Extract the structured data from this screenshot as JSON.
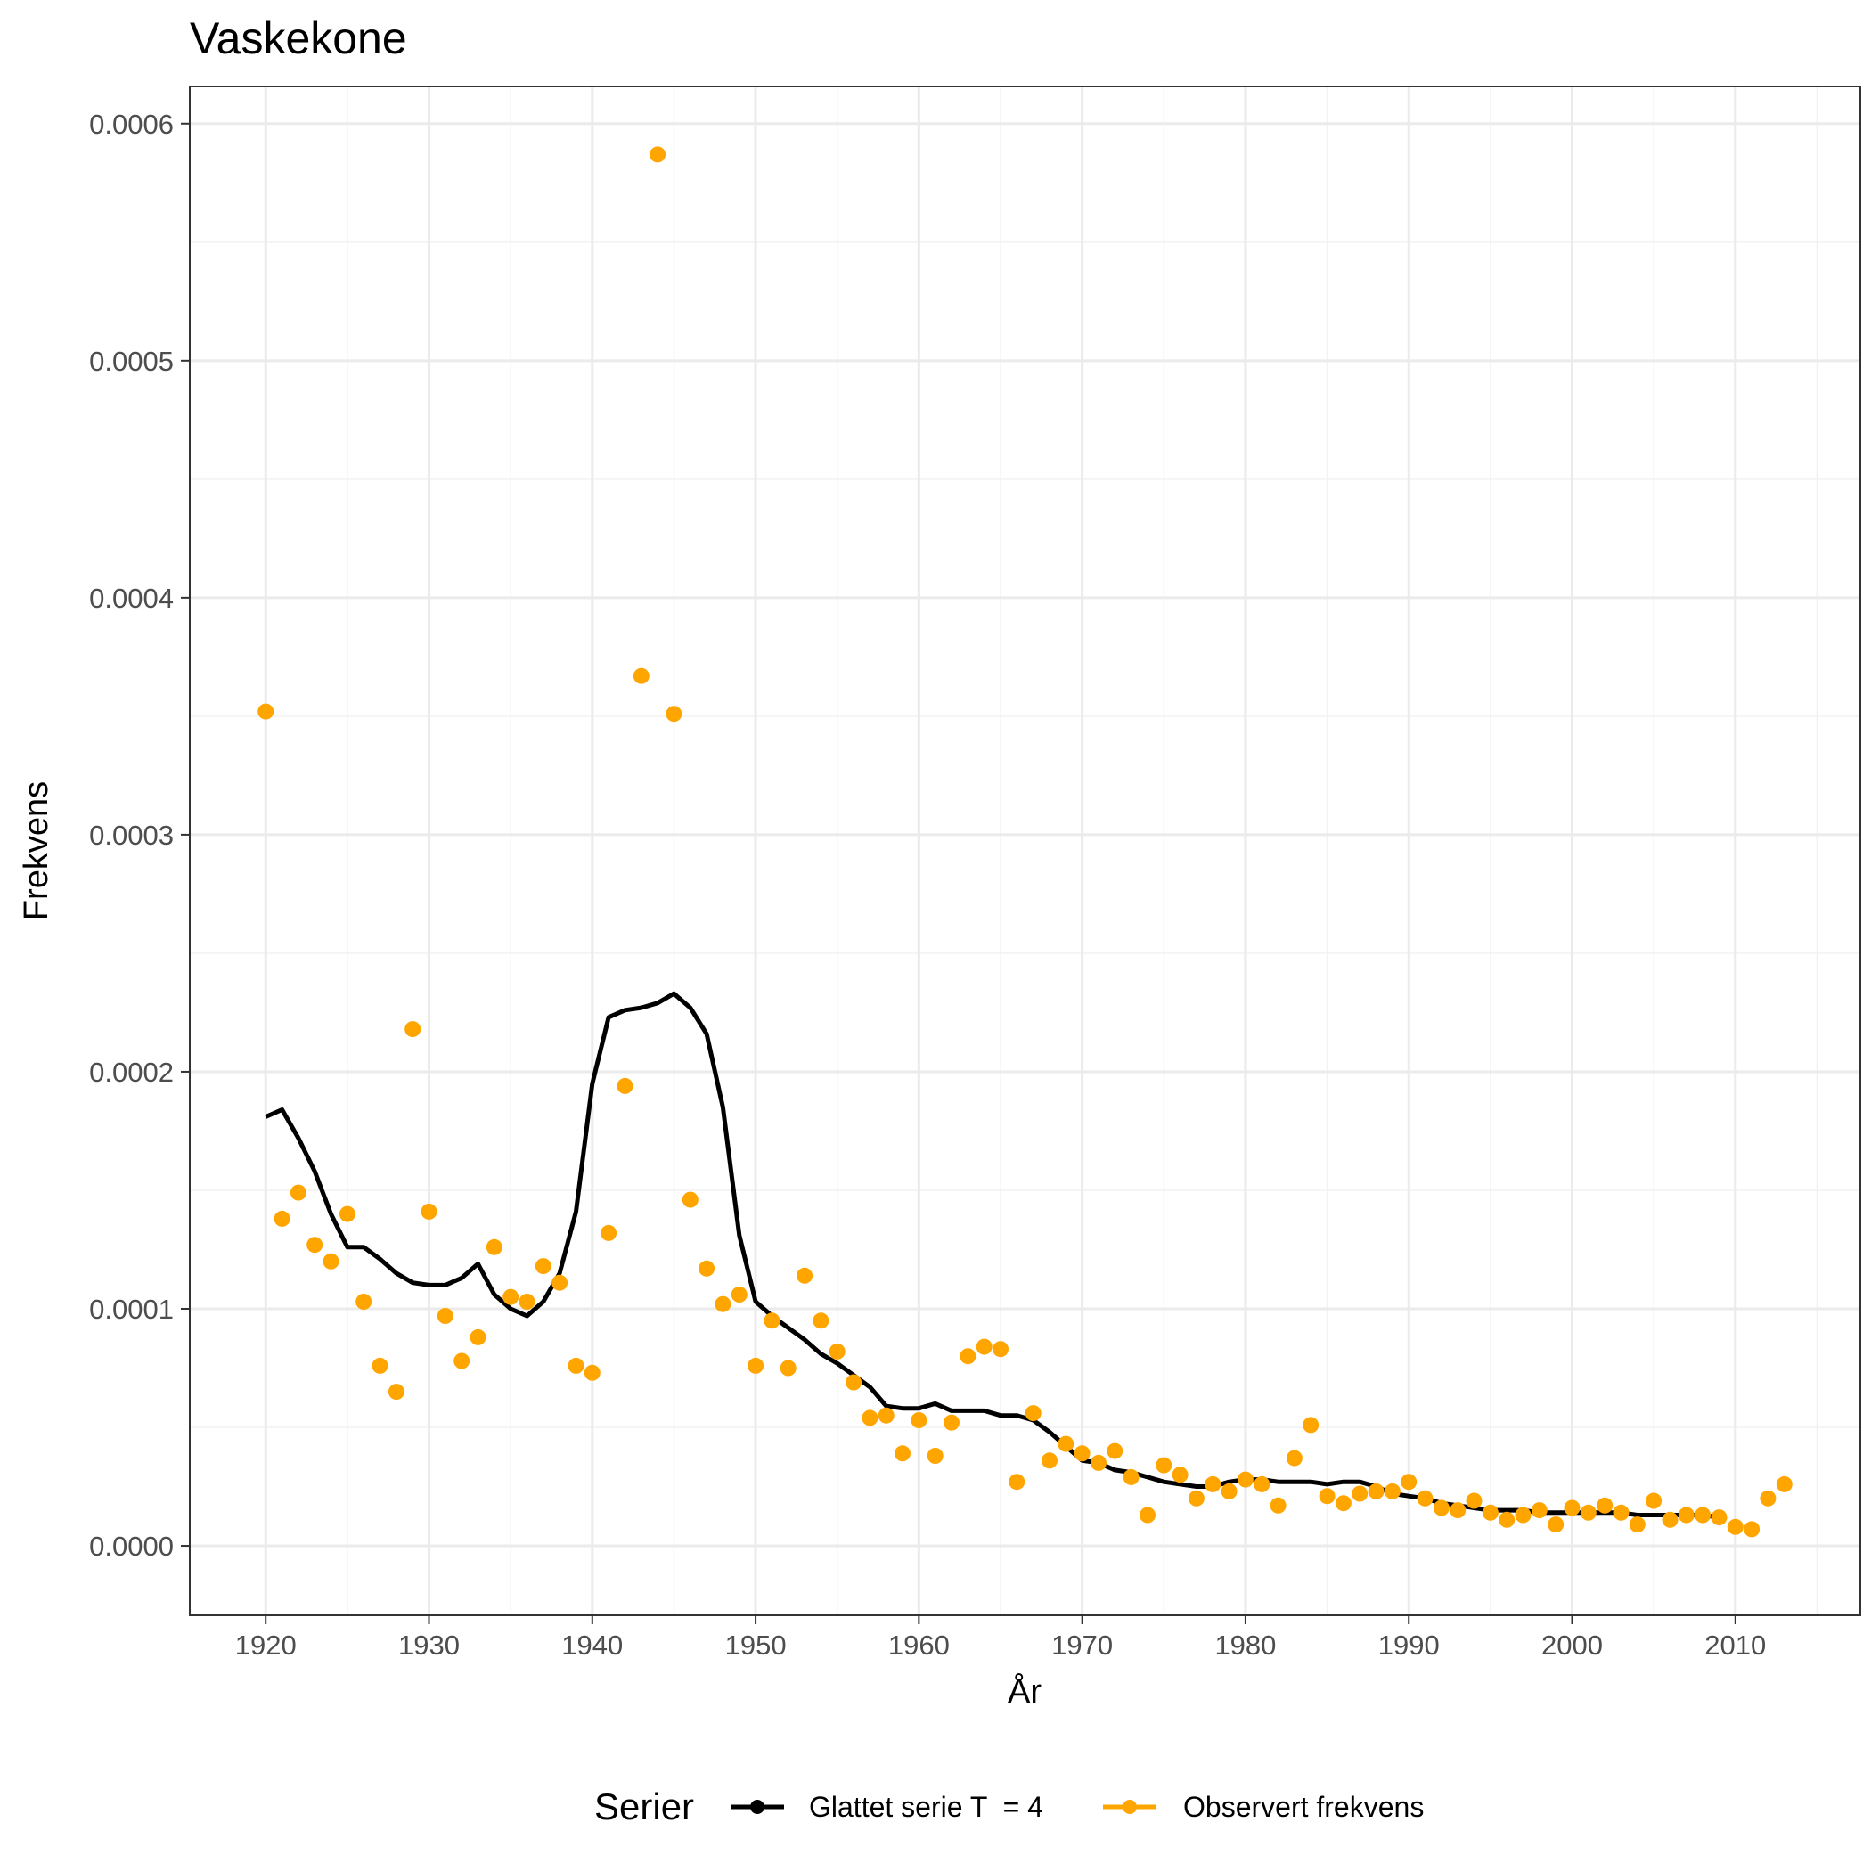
{
  "chart_data": {
    "type": "line",
    "title": "Vaskekone",
    "xlabel": "År",
    "ylabel": "Frekvens",
    "xlim": [
      1915.35,
      2017.65
    ],
    "ylim": [
      -2.93e-05,
      0.0006157
    ],
    "x_ticks": [
      1920,
      1930,
      1940,
      1950,
      1960,
      1970,
      1980,
      1990,
      2000,
      2010
    ],
    "x_tick_labels": [
      "1920",
      "1930",
      "1940",
      "1950",
      "1960",
      "1970",
      "1980",
      "1990",
      "2000",
      "2010"
    ],
    "y_ticks": [
      0,
      0.0001,
      0.0002,
      0.0003,
      0.0004,
      0.0005,
      0.0006
    ],
    "y_tick_labels": [
      "0.0000",
      "0.0001",
      "0.0002",
      "0.0003",
      "0.0004",
      "0.0005",
      "0.0006"
    ],
    "grid": true,
    "legend": {
      "title": "Serier",
      "position": "bottom"
    },
    "series": [
      {
        "name": "Glattet serie T  = 4",
        "kind": "line",
        "color": "#000000",
        "x": [
          1920,
          1921,
          1922,
          1923,
          1924,
          1925,
          1926,
          1927,
          1928,
          1929,
          1930,
          1931,
          1932,
          1933,
          1934,
          1935,
          1936,
          1937,
          1938,
          1939,
          1940,
          1941,
          1942,
          1943,
          1944,
          1945,
          1946,
          1947,
          1948,
          1949,
          1950,
          1951,
          1952,
          1953,
          1954,
          1955,
          1956,
          1957,
          1958,
          1959,
          1960,
          1961,
          1962,
          1963,
          1964,
          1965,
          1966,
          1967,
          1968,
          1969,
          1970,
          1971,
          1972,
          1973,
          1974,
          1975,
          1976,
          1977,
          1978,
          1979,
          1980,
          1981,
          1982,
          1983,
          1984,
          1985,
          1986,
          1987,
          1988,
          1989,
          1990,
          1991,
          1992,
          1993,
          1994,
          1995,
          1996,
          1997,
          1998,
          1999,
          2000,
          2001,
          2002,
          2003,
          2004,
          2005,
          2006,
          2007,
          2008,
          2009
        ],
        "values": [
          0.000181,
          0.000184,
          0.000172,
          0.000158,
          0.00014,
          0.000126,
          0.000126,
          0.000121,
          0.000115,
          0.000111,
          0.00011,
          0.00011,
          0.000113,
          0.000119,
          0.000106,
          0.0001,
          9.7e-05,
          0.000103,
          0.000115,
          0.000141,
          0.000195,
          0.000223,
          0.000226,
          0.000227,
          0.000229,
          0.000233,
          0.000227,
          0.000216,
          0.000185,
          0.000131,
          0.000103,
          9.7e-05,
          9.2e-05,
          8.7e-05,
          8.1e-05,
          7.7e-05,
          7.2e-05,
          6.7e-05,
          5.9e-05,
          5.8e-05,
          5.8e-05,
          6e-05,
          5.7e-05,
          5.7e-05,
          5.7e-05,
          5.5e-05,
          5.5e-05,
          5.3e-05,
          4.8e-05,
          4.2e-05,
          3.6e-05,
          3.5e-05,
          3.2e-05,
          3.1e-05,
          2.9e-05,
          2.7e-05,
          2.6e-05,
          2.5e-05,
          2.5e-05,
          2.7e-05,
          2.8e-05,
          2.8e-05,
          2.7e-05,
          2.7e-05,
          2.7e-05,
          2.6e-05,
          2.7e-05,
          2.7e-05,
          2.5e-05,
          2.2e-05,
          2.1e-05,
          2e-05,
          1.8e-05,
          1.7e-05,
          1.6e-05,
          1.5e-05,
          1.5e-05,
          1.5e-05,
          1.4e-05,
          1.4e-05,
          1.4e-05,
          1.4e-05,
          1.4e-05,
          1.4e-05,
          1.3e-05,
          1.3e-05,
          1.3e-05,
          1.3e-05,
          1.3e-05,
          1.2e-05
        ]
      },
      {
        "name": "Observert frekvens",
        "kind": "points",
        "color": "#FFA500",
        "x": [
          1920,
          1921,
          1922,
          1923,
          1924,
          1925,
          1926,
          1927,
          1928,
          1929,
          1930,
          1931,
          1932,
          1933,
          1934,
          1935,
          1936,
          1937,
          1938,
          1939,
          1940,
          1941,
          1942,
          1943,
          1944,
          1945,
          1946,
          1947,
          1948,
          1949,
          1950,
          1951,
          1952,
          1953,
          1954,
          1955,
          1956,
          1957,
          1958,
          1959,
          1960,
          1961,
          1962,
          1963,
          1964,
          1965,
          1966,
          1967,
          1968,
          1969,
          1970,
          1971,
          1972,
          1973,
          1974,
          1975,
          1976,
          1977,
          1978,
          1979,
          1980,
          1981,
          1982,
          1983,
          1984,
          1985,
          1986,
          1987,
          1988,
          1989,
          1990,
          1991,
          1992,
          1993,
          1994,
          1995,
          1996,
          1997,
          1998,
          1999,
          2000,
          2001,
          2002,
          2003,
          2004,
          2005,
          2006,
          2007,
          2008,
          2009,
          2010,
          2011,
          2012,
          2013
        ],
        "values": [
          0.000352,
          0.000138,
          0.000149,
          0.000127,
          0.00012,
          0.00014,
          0.000103,
          7.6e-05,
          6.5e-05,
          0.000218,
          0.000141,
          9.7e-05,
          7.8e-05,
          8.8e-05,
          0.000126,
          0.000105,
          0.000103,
          0.000118,
          0.000111,
          7.6e-05,
          7.3e-05,
          0.000132,
          0.000194,
          0.000367,
          0.000587,
          0.000351,
          0.000146,
          0.000117,
          0.000102,
          0.000106,
          7.6e-05,
          9.5e-05,
          7.5e-05,
          0.000114,
          9.5e-05,
          8.2e-05,
          6.9e-05,
          5.4e-05,
          5.5e-05,
          3.9e-05,
          5.3e-05,
          3.8e-05,
          5.2e-05,
          8e-05,
          8.4e-05,
          8.3e-05,
          2.7e-05,
          5.6e-05,
          3.6e-05,
          4.3e-05,
          3.9e-05,
          3.5e-05,
          4e-05,
          2.9e-05,
          1.3e-05,
          3.4e-05,
          3e-05,
          2e-05,
          2.6e-05,
          2.3e-05,
          2.8e-05,
          2.6e-05,
          1.7e-05,
          3.7e-05,
          5.1e-05,
          2.1e-05,
          1.8e-05,
          2.2e-05,
          2.3e-05,
          2.3e-05,
          2.7e-05,
          2e-05,
          1.6e-05,
          1.5e-05,
          1.9e-05,
          1.4e-05,
          1.1e-05,
          1.3e-05,
          1.5e-05,
          9e-06,
          1.6e-05,
          1.4e-05,
          1.7e-05,
          1.4e-05,
          9e-06,
          1.9e-05,
          1.1e-05,
          1.3e-05,
          1.3e-05,
          1.2e-05,
          8e-06,
          7e-06,
          2e-05,
          2.6e-05
        ]
      }
    ]
  }
}
